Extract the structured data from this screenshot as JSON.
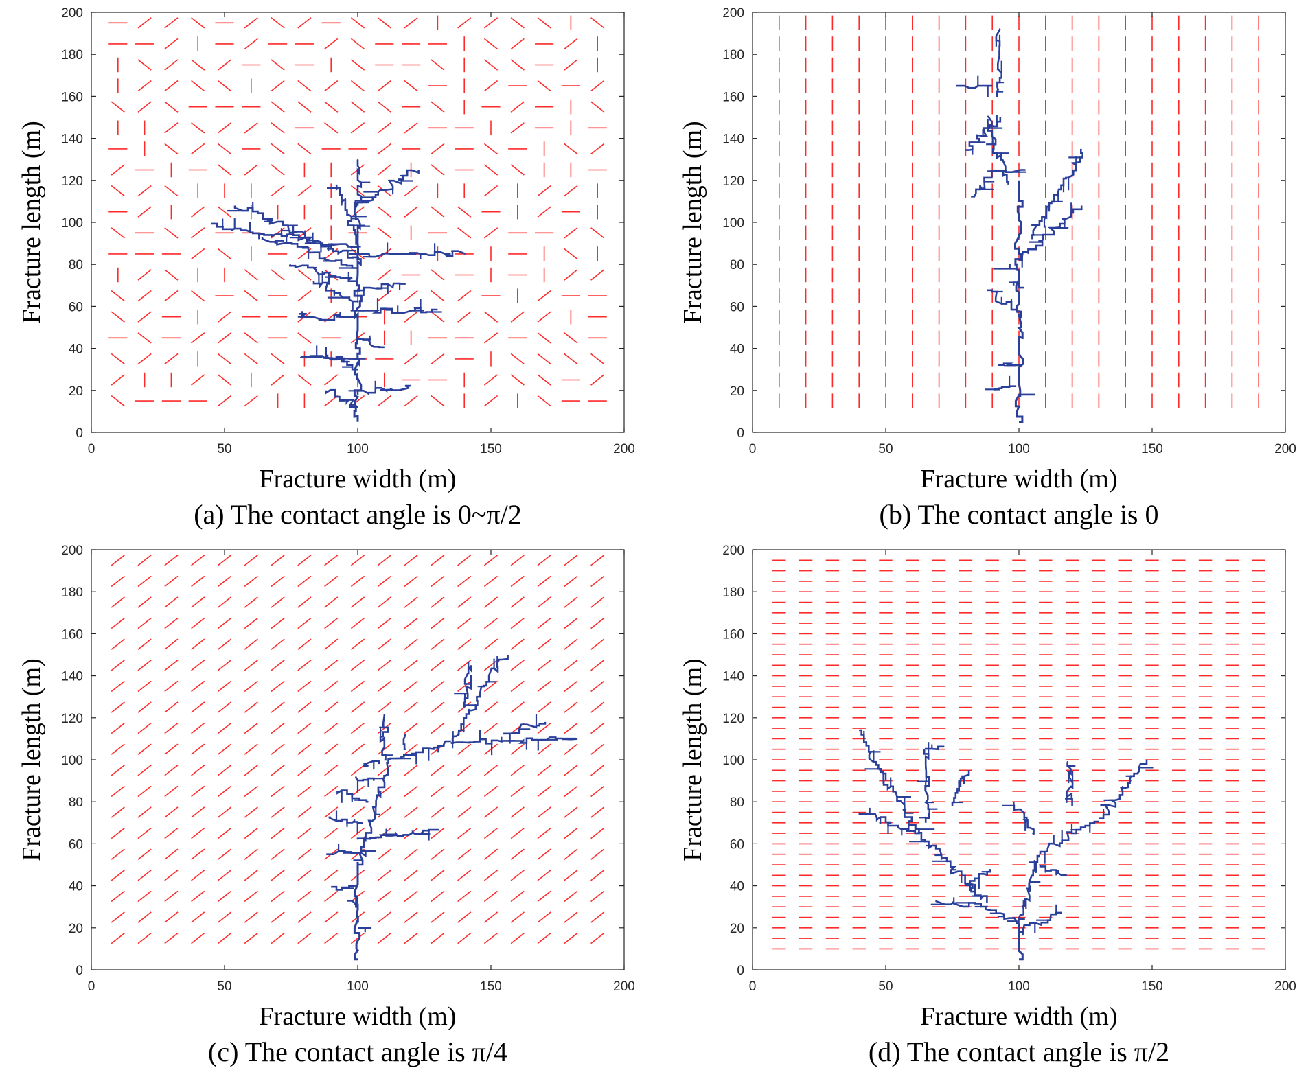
{
  "colors": {
    "fracture": "#ff2a2a",
    "path": "#2a3f9a",
    "axis": "#262626"
  },
  "chart_data": [
    {
      "type": "scatter",
      "caption": "(a) The contact angle is 0~π/2",
      "xlabel": "Fracture width (m)",
      "ylabel": "Fracture length (m)",
      "xlim": [
        0,
        200
      ],
      "ylim": [
        0,
        200
      ],
      "xticks": [
        0,
        50,
        100,
        150,
        200
      ],
      "yticks": [
        0,
        20,
        40,
        60,
        80,
        100,
        120,
        140,
        160,
        180,
        200
      ],
      "grid": false,
      "series": [
        {
          "role": "natural-fractures",
          "orientation": "random in 0~π/2",
          "x_start": 10,
          "x_end": 190,
          "x_step": 10,
          "y_start": 15,
          "y_end": 195,
          "y_step": 10,
          "segment_length": 7
        },
        {
          "role": "hydraulic-fracture-path",
          "seed": [
            100,
            5
          ],
          "trunk_top": 95,
          "branches": [
            [
              [
                100,
                30
              ],
              [
                88,
                37
              ]
            ],
            [
              [
                100,
                35
              ],
              [
                78,
                36
              ]
            ],
            [
              [
                100,
                55
              ],
              [
                78,
                55
              ]
            ],
            [
              [
                100,
                58
              ],
              [
                130,
                58
              ]
            ],
            [
              [
                100,
                62
              ],
              [
                83,
                72
              ]
            ],
            [
              [
                100,
                68
              ],
              [
                118,
                70
              ]
            ],
            [
              [
                100,
                72
              ],
              [
                75,
                80
              ]
            ],
            [
              [
                100,
                78
              ],
              [
                65,
                93
              ]
            ],
            [
              [
                100,
                82
              ],
              [
                55,
                108
              ]
            ],
            [
              [
                100,
                85
              ],
              [
                140,
                85
              ]
            ],
            [
              [
                100,
                88
              ],
              [
                45,
                98
              ]
            ],
            [
              [
                100,
                92
              ],
              [
                92,
                118
              ]
            ],
            [
              [
                100,
                95
              ],
              [
                100,
                130
              ]
            ],
            [
              [
                100,
                108
              ],
              [
                122,
                125
              ]
            ],
            [
              [
                100,
                18
              ],
              [
                120,
                22
              ]
            ],
            [
              [
                100,
                12
              ],
              [
                88,
                20
              ]
            ],
            [
              [
                100,
                45
              ],
              [
                110,
                40
              ]
            ]
          ]
        }
      ]
    },
    {
      "type": "scatter",
      "caption": "(b) The contact angle is 0",
      "xlabel": "Fracture width (m)",
      "ylabel": "Fracture length (m)",
      "xlim": [
        0,
        200
      ],
      "ylim": [
        0,
        200
      ],
      "xticks": [
        0,
        50,
        100,
        150,
        200
      ],
      "yticks": [
        0,
        20,
        40,
        60,
        80,
        100,
        120,
        140,
        160,
        180,
        200
      ],
      "grid": false,
      "series": [
        {
          "role": "natural-fractures",
          "orientation": "0 (vertical)",
          "x_start": 10,
          "x_end": 190,
          "x_step": 10,
          "y_start": 15,
          "y_end": 195,
          "y_step": 10,
          "segment_length": 7
        },
        {
          "role": "hydraulic-fracture-path",
          "seed": [
            100,
            5
          ],
          "trunk_top": 120,
          "branches": [
            [
              [
                100,
                18
              ],
              [
                107,
                18
              ]
            ],
            [
              [
                99,
                22
              ],
              [
                90,
                20
              ]
            ],
            [
              [
                99,
                32
              ],
              [
                92,
                32
              ]
            ],
            [
              [
                99,
                58
              ],
              [
                88,
                67
              ]
            ],
            [
              [
                99,
                78
              ],
              [
                90,
                78
              ]
            ],
            [
              [
                100,
                82
              ],
              [
                122,
                108
              ]
            ],
            [
              [
                105,
                92
              ],
              [
                124,
                135
              ]
            ],
            [
              [
                96,
                118
              ],
              [
                88,
                150
              ]
            ],
            [
              [
                93,
                150
              ],
              [
                80,
                133
              ]
            ],
            [
              [
                92,
                160
              ],
              [
                93,
                191
              ]
            ],
            [
              [
                90,
                165
              ],
              [
                77,
                165
              ]
            ],
            [
              [
                91,
                125
              ],
              [
                82,
                112
              ]
            ],
            [
              [
                95,
                125
              ],
              [
                102,
                125
              ]
            ],
            [
              [
                98,
                70
              ],
              [
                102,
                70
              ]
            ]
          ]
        }
      ]
    },
    {
      "type": "scatter",
      "caption": "(c) The contact angle is π/4",
      "xlabel": "Fracture width (m)",
      "ylabel": "Fracture length (m)",
      "xlim": [
        0,
        200
      ],
      "ylim": [
        0,
        200
      ],
      "xticks": [
        0,
        50,
        100,
        150,
        200
      ],
      "yticks": [
        0,
        20,
        40,
        60,
        80,
        100,
        120,
        140,
        160,
        180,
        200
      ],
      "grid": false,
      "series": [
        {
          "role": "natural-fractures",
          "orientation": "π/4",
          "x_start": 10,
          "x_end": 190,
          "x_step": 10,
          "y_start": 15,
          "y_end": 195,
          "y_step": 10,
          "segment_length": 7
        },
        {
          "role": "hydraulic-fracture-path",
          "seed": [
            100,
            5
          ],
          "trunk_top": 50,
          "branches": [
            [
              [
                100,
                50
              ],
              [
                112,
                100
              ]
            ],
            [
              [
                112,
                100
              ],
              [
                135,
                108
              ]
            ],
            [
              [
                135,
                108
              ],
              [
                183,
                110
              ]
            ],
            [
              [
                135,
                108
              ],
              [
                155,
                150
              ]
            ],
            [
              [
                140,
                125
              ],
              [
                142,
                145
              ]
            ],
            [
              [
                100,
                62
              ],
              [
                130,
                67
              ]
            ],
            [
              [
                102,
                70
              ],
              [
                88,
                73
              ]
            ],
            [
              [
                100,
                55
              ],
              [
                88,
                55
              ]
            ],
            [
              [
                100,
                40
              ],
              [
                90,
                38
              ]
            ],
            [
              [
                104,
                80
              ],
              [
                92,
                85
              ]
            ],
            [
              [
                106,
                90
              ],
              [
                98,
                92
              ]
            ],
            [
              [
                108,
                98
              ],
              [
                102,
                98
              ]
            ],
            [
              [
                110,
                100
              ],
              [
                110,
                122
              ]
            ],
            [
              [
                118,
                105
              ],
              [
                118,
                112
              ]
            ],
            [
              [
                155,
                112
              ],
              [
                170,
                118
              ]
            ],
            [
              [
                100,
                20
              ],
              [
                104,
                20
              ]
            ],
            [
              [
                100,
                30
              ],
              [
                96,
                32
              ]
            ]
          ]
        }
      ]
    },
    {
      "type": "scatter",
      "caption": "(d) The contact angle is π/2",
      "xlabel": "Fracture width (m)",
      "ylabel": "Fracture length (m)",
      "xlim": [
        0,
        200
      ],
      "ylim": [
        0,
        200
      ],
      "xticks": [
        0,
        50,
        100,
        150,
        200
      ],
      "yticks": [
        0,
        20,
        40,
        60,
        80,
        100,
        120,
        140,
        160,
        180,
        200
      ],
      "grid": false,
      "series": [
        {
          "role": "natural-fractures",
          "orientation": "π/2 (horizontal)",
          "x_start": 10,
          "x_end": 190,
          "x_step": 10,
          "y_start": 10,
          "y_end": 195,
          "y_step": 5,
          "segment_length": 5
        },
        {
          "role": "hydraulic-fracture-path",
          "seed": [
            100,
            5
          ],
          "trunk_top": 22,
          "branches": [
            [
              [
                100,
                22
              ],
              [
                88,
                30
              ]
            ],
            [
              [
                88,
                30
              ],
              [
                70,
                33
              ]
            ],
            [
              [
                88,
                32
              ],
              [
                62,
                65
              ]
            ],
            [
              [
                62,
                65
              ],
              [
                40,
                75
              ]
            ],
            [
              [
                62,
                65
              ],
              [
                50,
                90
              ]
            ],
            [
              [
                50,
                90
              ],
              [
                40,
                113
              ]
            ],
            [
              [
                65,
                70
              ],
              [
                65,
                105
              ]
            ],
            [
              [
                65,
                105
              ],
              [
                72,
                105
              ]
            ],
            [
              [
                75,
                78
              ],
              [
                80,
                95
              ]
            ],
            [
              [
                100,
                22
              ],
              [
                108,
                55
              ]
            ],
            [
              [
                108,
                55
              ],
              [
                130,
                72
              ]
            ],
            [
              [
                130,
                72
              ],
              [
                148,
                100
              ]
            ],
            [
              [
                120,
                78
              ],
              [
                118,
                100
              ]
            ],
            [
              [
                105,
                65
              ],
              [
                98,
                80
              ]
            ],
            [
              [
                108,
                50
              ],
              [
                118,
                45
              ]
            ],
            [
              [
                100,
                18
              ],
              [
                116,
                27
              ]
            ],
            [
              [
                80,
                40
              ],
              [
                90,
                48
              ]
            ]
          ]
        }
      ]
    }
  ]
}
